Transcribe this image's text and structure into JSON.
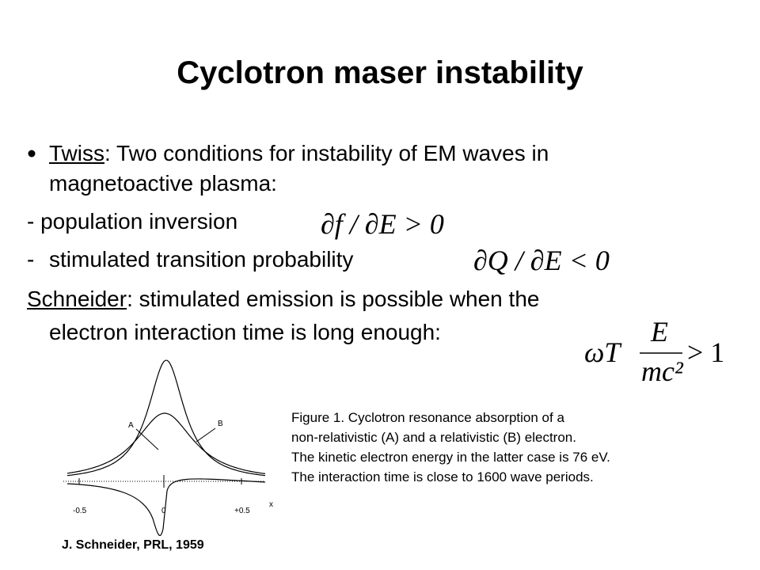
{
  "title": "Cyclotron maser instability",
  "twiss": {
    "name": "Twiss",
    "lines": [
      ": Two conditions for instability of EM waves in",
      "magnetoactive plasma:"
    ]
  },
  "condition1": {
    "text": "- population inversion",
    "formula": "∂f / ∂E > 0"
  },
  "condition2": {
    "marker": "-",
    "text": "stimulated transition probability",
    "formula": "∂Q / ∂E < 0"
  },
  "schneider": {
    "name": "Schneider",
    "lines": [
      ": stimulated emission is possible when the",
      "electron interaction time is long enough:"
    ],
    "formula": {
      "left": "ωT",
      "numerator": "E",
      "denominator": "mc²",
      "right": "> 1"
    }
  },
  "figure": {
    "curve_labels": [
      "A",
      "B"
    ],
    "x_label": "x",
    "x_ticks": [
      "-0.5",
      "0",
      "+0.5"
    ],
    "caption": [
      "Figure 1. Cyclotron resonance absorption of a",
      "non-relativistic (A) and a relativistic (B) electron.",
      "The kinetic electron energy in the latter case is 76 eV.",
      "The interaction time is close to 1600 wave periods."
    ],
    "credit": "J. Schneider, PRL, 1959"
  }
}
